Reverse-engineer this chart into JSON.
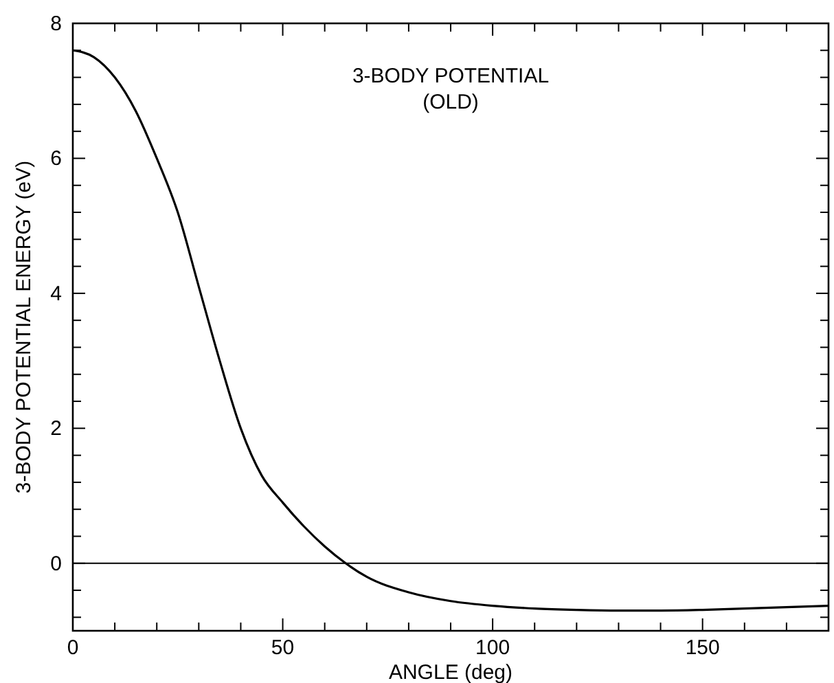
{
  "chart_data": {
    "type": "line",
    "title": "3-BODY POTENTIAL",
    "subtitle": "(OLD)",
    "xlabel": "ANGLE (deg)",
    "ylabel": "3-BODY POTENTIAL ENERGY (eV)",
    "x": [
      0,
      5,
      10,
      15,
      20,
      25,
      30,
      35,
      40,
      45,
      50,
      55,
      60,
      65,
      70,
      80,
      90,
      100,
      110,
      120,
      130,
      140,
      150,
      160,
      170,
      180
    ],
    "series": [
      {
        "color": "#000000",
        "values": [
          7.6,
          7.5,
          7.2,
          6.7,
          6.0,
          5.2,
          4.1,
          3.0,
          2.0,
          1.3,
          0.9,
          0.55,
          0.25,
          0.0,
          -0.2,
          -0.43,
          -0.56,
          -0.63,
          -0.67,
          -0.69,
          -0.7,
          -0.7,
          -0.69,
          -0.67,
          -0.65,
          -0.63
        ]
      }
    ],
    "xlim": [
      0,
      180
    ],
    "ylim": [
      -1,
      8
    ],
    "xticks": [
      0,
      {
        "value": 10,
        "label": null
      },
      {
        "value": 20,
        "label": null
      },
      {
        "value": 30,
        "label": null
      },
      {
        "value": 40,
        "label": null
      },
      50,
      {
        "value": 60,
        "label": null
      },
      {
        "value": 70,
        "label": null
      },
      {
        "value": 80,
        "label": null
      },
      {
        "value": 90,
        "label": null
      },
      100,
      {
        "value": 110,
        "label": null
      },
      {
        "value": 120,
        "label": null
      },
      {
        "value": 130,
        "label": null
      },
      {
        "value": 140,
        "label": null
      },
      150,
      {
        "value": 160,
        "label": null
      },
      {
        "value": 170,
        "label": null
      },
      {
        "value": 180,
        "label": null
      }
    ],
    "yticks": [
      {
        "value": -0.8,
        "label": null
      },
      {
        "value": -0.4,
        "label": null
      },
      0,
      {
        "value": 0.4,
        "label": null
      },
      {
        "value": 0.8,
        "label": null
      },
      {
        "value": 1.2,
        "label": null
      },
      {
        "value": 1.6,
        "label": null
      },
      2,
      {
        "value": 2.4,
        "label": null
      },
      {
        "value": 2.8,
        "label": null
      },
      {
        "value": 3.2,
        "label": null
      },
      {
        "value": 3.6,
        "label": null
      },
      4,
      {
        "value": 4.4,
        "label": null
      },
      {
        "value": 4.8,
        "label": null
      },
      {
        "value": 5.2,
        "label": null
      },
      {
        "value": 5.6,
        "label": null
      },
      6,
      {
        "value": 6.4,
        "label": null
      },
      {
        "value": 6.8,
        "label": null
      },
      {
        "value": 7.2,
        "label": null
      },
      {
        "value": 7.6,
        "label": null
      },
      8
    ],
    "ref_lines": [
      {
        "axis": "y",
        "value": 0,
        "color": "#000000"
      }
    ],
    "grid": false,
    "marker": "none",
    "line_style": "solid"
  }
}
